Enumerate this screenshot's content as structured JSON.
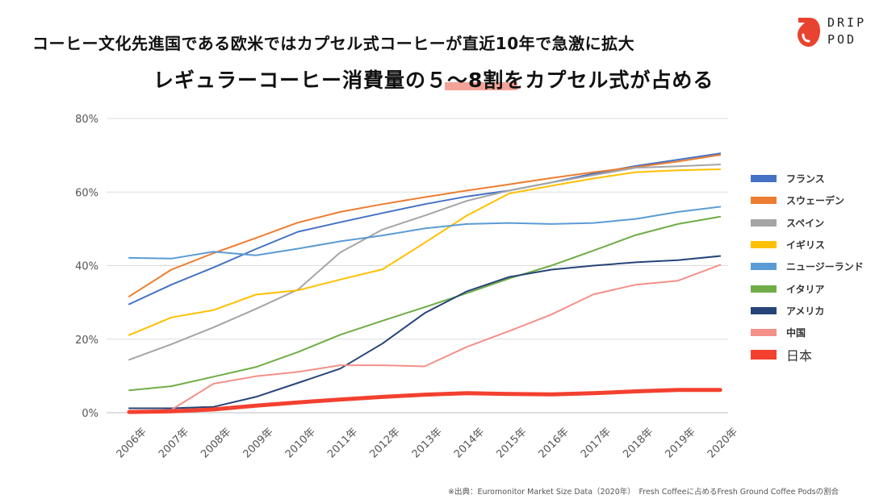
{
  "headline": {
    "line1": "コーヒー文化先進国である欧米ではカプセル式コーヒーが直近10年で急激に拡大",
    "line2": "レギュラーコーヒー消費量の５～8割をカプセル式が占める"
  },
  "logo": {
    "line1": "DRIP",
    "line2": "POD",
    "color": "#e8432e"
  },
  "source_note": "※出典：Euromonitor Market Size Data（2020年）　Fresh Coffeeに占めるFresh Ground Coffee Podsの割合",
  "chart_data": {
    "type": "line",
    "x": [
      "2006年",
      "2007年",
      "2008年",
      "2009年",
      "2010年",
      "2011年",
      "2012年",
      "2013年",
      "2014年",
      "2015年",
      "2016年",
      "2017年",
      "2018年",
      "2019年",
      "2020年"
    ],
    "ylim": [
      0,
      80
    ],
    "yticks": [
      "0%",
      "20%",
      "40%",
      "60%",
      "80%"
    ],
    "grid": true,
    "legend_position": "right",
    "series": [
      {
        "name": "フランス",
        "color": "#4472c4",
        "values": [
          29.5,
          34.8,
          39.5,
          44.5,
          49.2,
          51.8,
          54.3,
          56.7,
          58.8,
          60.4,
          62.6,
          65.0,
          67.1,
          68.8,
          70.5
        ]
      },
      {
        "name": "スウェーデン",
        "color": "#ed7d31",
        "values": [
          31.6,
          38.9,
          43.4,
          47.5,
          51.7,
          54.6,
          56.7,
          58.6,
          60.4,
          62.1,
          63.8,
          65.4,
          66.8,
          68.3,
          70.1
        ]
      },
      {
        "name": "スペイン",
        "color": "#a5a5a5",
        "values": [
          14.4,
          18.6,
          23.2,
          28.2,
          33.5,
          43.6,
          49.8,
          53.6,
          57.6,
          60.4,
          62.6,
          64.6,
          66.6,
          67.0,
          67.5
        ]
      },
      {
        "name": "イギリス",
        "color": "#ffc000",
        "values": [
          21.1,
          25.9,
          27.9,
          32.1,
          33.3,
          36.2,
          39.0,
          46.2,
          53.6,
          59.6,
          61.7,
          63.7,
          65.4,
          65.9,
          66.2
        ]
      },
      {
        "name": "ニュージーランド",
        "color": "#5b9bd5",
        "values": [
          42.1,
          41.9,
          43.8,
          42.8,
          44.6,
          46.6,
          48.2,
          50.1,
          51.3,
          51.6,
          51.3,
          51.6,
          52.7,
          54.6,
          56.0
        ]
      },
      {
        "name": "イタリア",
        "color": "#70ad47",
        "values": [
          6.1,
          7.2,
          9.8,
          12.4,
          16.5,
          21.2,
          25.0,
          28.7,
          32.5,
          36.5,
          40.0,
          44.1,
          48.3,
          51.3,
          53.3
        ]
      },
      {
        "name": "アメリカ",
        "color": "#264478",
        "values": [
          1.2,
          1.2,
          1.6,
          4.3,
          8.1,
          12.0,
          18.8,
          27.1,
          33.0,
          36.9,
          38.9,
          40.0,
          40.9,
          41.5,
          42.6
        ]
      },
      {
        "name": "中国",
        "color": "#f4908a",
        "values": [
          0.3,
          0.8,
          7.9,
          9.9,
          11.1,
          12.9,
          12.9,
          12.6,
          17.9,
          22.2,
          26.7,
          32.2,
          34.8,
          35.9,
          40.2
        ]
      },
      {
        "name": "日本",
        "color": "#f3402f",
        "values": [
          0.2,
          0.4,
          0.9,
          1.9,
          2.8,
          3.6,
          4.3,
          4.9,
          5.3,
          5.1,
          5.0,
          5.3,
          5.8,
          6.2,
          6.2
        ],
        "emphasis": true
      }
    ]
  }
}
